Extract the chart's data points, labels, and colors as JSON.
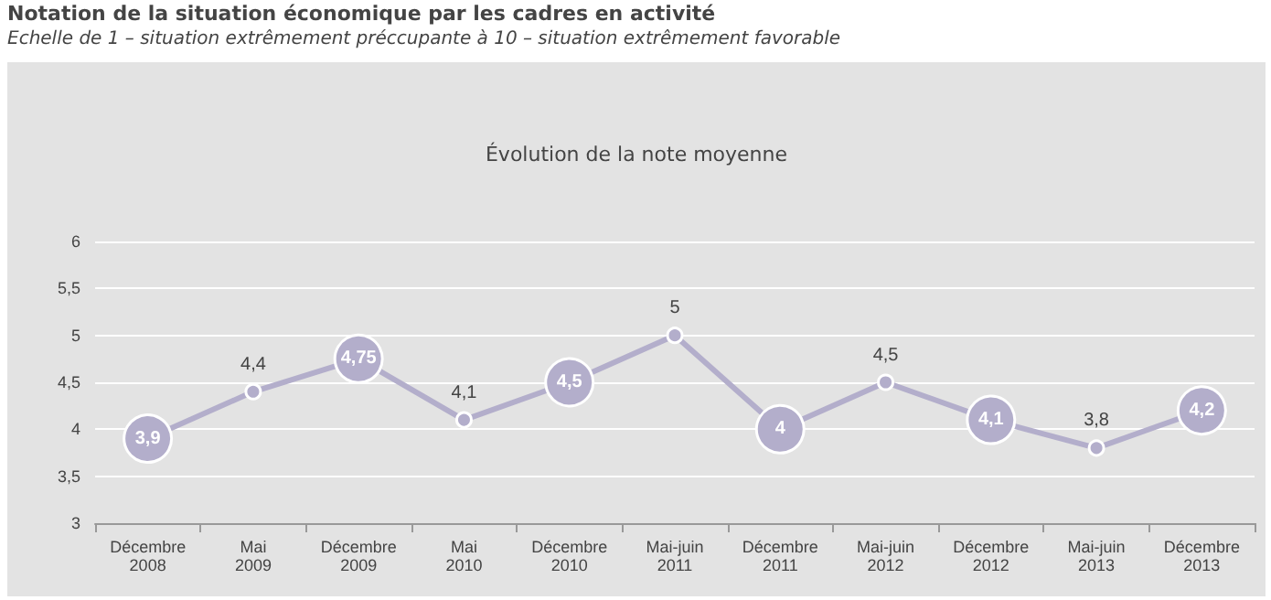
{
  "chart_data": {
    "type": "line",
    "title": "Notation de la situation économique par les cadres en activité",
    "subtitle": "Echelle  de 1 – situation extrêmement préccupante à 10 – situation extrêmement favorable",
    "annotations": [
      "Évolution de la note moyenne"
    ],
    "categories": [
      "Décembre\n2008",
      "Mai\n2009",
      "Décembre\n2009",
      "Mai\n2010",
      "Décembre\n2010",
      "Mai-juin\n2011",
      "Décembre\n2011",
      "Mai-juin\n2012",
      "Décembre\n2012",
      "Mai-juin\n2013",
      "Décembre\n2013"
    ],
    "series": [
      {
        "color": "#b3aecb",
        "values": [
          3.9,
          4.4,
          4.75,
          4.1,
          4.5,
          5,
          4,
          4.5,
          4.1,
          3.8,
          4.2
        ],
        "value_labels": [
          "3,9",
          "4,4",
          "4,75",
          "4,1",
          "4,5",
          "5",
          "4",
          "4,5",
          "4,1",
          "3,8",
          "4,2"
        ]
      }
    ],
    "ylim": [
      3,
      6
    ],
    "yticks": [
      3,
      {
        "value": 3.5,
        "label": "3,5"
      },
      4,
      {
        "value": 4.5,
        "label": "4,5"
      },
      5,
      {
        "value": 5.5,
        "label": "5,5"
      },
      6
    ],
    "grid": "y",
    "marker": "circle",
    "line_style": "solid"
  }
}
